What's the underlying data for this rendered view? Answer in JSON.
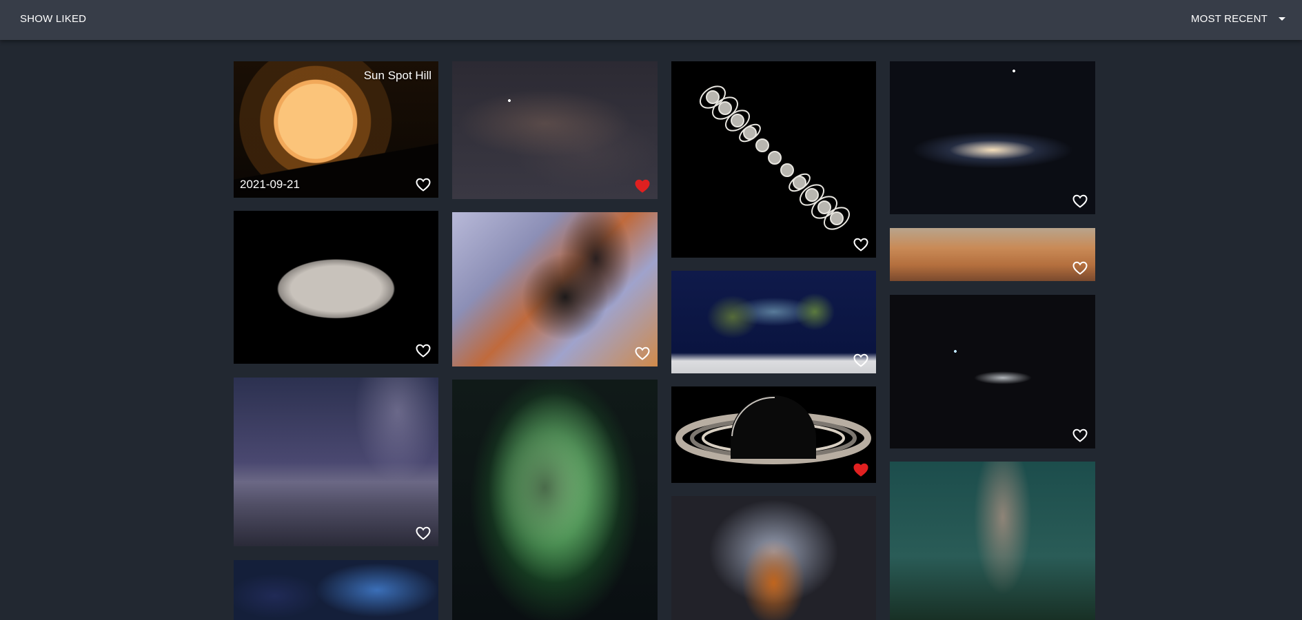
{
  "topbar": {
    "show_liked": "SHOW LIKED",
    "sort": "MOST RECENT"
  },
  "tiles": [
    {
      "title": "Sun Spot Hill",
      "date": "2021-09-21",
      "liked": false
    },
    {
      "liked": true
    },
    {
      "liked": false
    },
    {
      "liked": false
    },
    {
      "liked": false
    },
    {
      "liked": false
    },
    {
      "liked": false
    },
    {
      "liked": false
    },
    {
      "liked": false
    },
    {
      "liked": true
    },
    {
      "liked": false
    },
    {
      "liked": false
    }
  ],
  "colors": {
    "topbar_bg": "#373d48",
    "page_bg": "#222831",
    "liked_heart": "#e02020",
    "unliked_heart": "#ffffff"
  },
  "icons": {
    "heart": "heart-icon",
    "sort_caret": "caret-down-icon"
  }
}
